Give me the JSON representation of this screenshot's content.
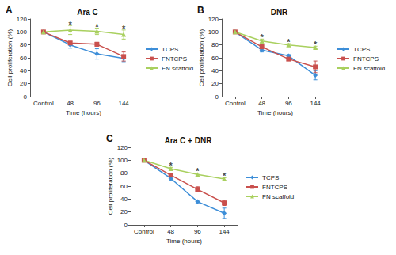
{
  "chart_data": [
    {
      "type": "line",
      "panel": "A",
      "title": "Ara C",
      "x_label": "Time (hours)",
      "y_label": "Cell proliferation (%)",
      "categories": [
        "Control",
        "48",
        "96",
        "144"
      ],
      "series": [
        {
          "name": "TCPS",
          "color": "#3d8ed8",
          "marker": "diamond",
          "values": [
            100,
            80,
            66,
            59
          ],
          "errors": [
            0,
            5,
            8,
            5
          ]
        },
        {
          "name": "FNTCPS",
          "color": "#c9504d",
          "marker": "square",
          "values": [
            100,
            83,
            81,
            62
          ],
          "errors": [
            0,
            2,
            3,
            7
          ]
        },
        {
          "name": "FN scaffold",
          "color": "#a9d05f",
          "marker": "triangle",
          "values": [
            100,
            103,
            101,
            96
          ],
          "errors": [
            0,
            7,
            5,
            7
          ]
        }
      ],
      "annotations": [
        {
          "x": "48",
          "y": 112,
          "text": "*"
        },
        {
          "x": "96",
          "y": 108,
          "text": "*"
        },
        {
          "x": "144",
          "y": 105,
          "text": "*"
        }
      ],
      "ylim": [
        0,
        120
      ],
      "yticks": [
        0,
        20,
        40,
        60,
        80,
        100,
        120
      ],
      "grid": false,
      "legend": "right"
    },
    {
      "type": "line",
      "panel": "B",
      "title": "DNR",
      "x_label": "Time (hours)",
      "y_label": "Cell proliferation (%)",
      "categories": [
        "Control",
        "48",
        "96",
        "144"
      ],
      "series": [
        {
          "name": "TCPS",
          "color": "#3d8ed8",
          "marker": "diamond",
          "values": [
            100,
            72,
            63,
            33
          ],
          "errors": [
            0,
            3,
            2,
            7
          ]
        },
        {
          "name": "FNTCPS",
          "color": "#c9504d",
          "marker": "square",
          "values": [
            100,
            77,
            58,
            46
          ],
          "errors": [
            0,
            3,
            2,
            9
          ]
        },
        {
          "name": "FN scaffold",
          "color": "#a9d05f",
          "marker": "triangle",
          "values": [
            100,
            86,
            80,
            76
          ],
          "errors": [
            0,
            3,
            2,
            2
          ]
        }
      ],
      "annotations": [
        {
          "x": "48",
          "y": 92,
          "text": "*"
        },
        {
          "x": "96",
          "y": 85,
          "text": "*"
        },
        {
          "x": "144",
          "y": 81,
          "text": "*"
        }
      ],
      "ylim": [
        0,
        120
      ],
      "yticks": [
        0,
        20,
        40,
        60,
        80,
        100,
        120
      ],
      "grid": false,
      "legend": "right"
    },
    {
      "type": "line",
      "panel": "C",
      "title": "Ara C + DNR",
      "x_label": "Time (hours)",
      "y_label": "Cell proliferation (%)",
      "categories": [
        "Control",
        "48",
        "96",
        "144"
      ],
      "series": [
        {
          "name": "TCPS",
          "color": "#3d8ed8",
          "marker": "diamond",
          "values": [
            100,
            72,
            36,
            18
          ],
          "errors": [
            0,
            3,
            2,
            8
          ]
        },
        {
          "name": "FNTCPS",
          "color": "#c9504d",
          "marker": "square",
          "values": [
            100,
            77,
            55,
            34
          ],
          "errors": [
            0,
            2,
            4,
            4
          ]
        },
        {
          "name": "FN scaffold",
          "color": "#a9d05f",
          "marker": "triangle",
          "values": [
            100,
            87,
            78,
            71
          ],
          "errors": [
            0,
            2,
            2,
            2
          ]
        }
      ],
      "annotations": [
        {
          "x": "48",
          "y": 92,
          "text": "*"
        },
        {
          "x": "96",
          "y": 83,
          "text": "*"
        },
        {
          "x": "144",
          "y": 76,
          "text": "*"
        }
      ],
      "ylim": [
        0,
        120
      ],
      "yticks": [
        0,
        20,
        40,
        60,
        80,
        100,
        120
      ],
      "grid": false,
      "legend": "right"
    }
  ]
}
